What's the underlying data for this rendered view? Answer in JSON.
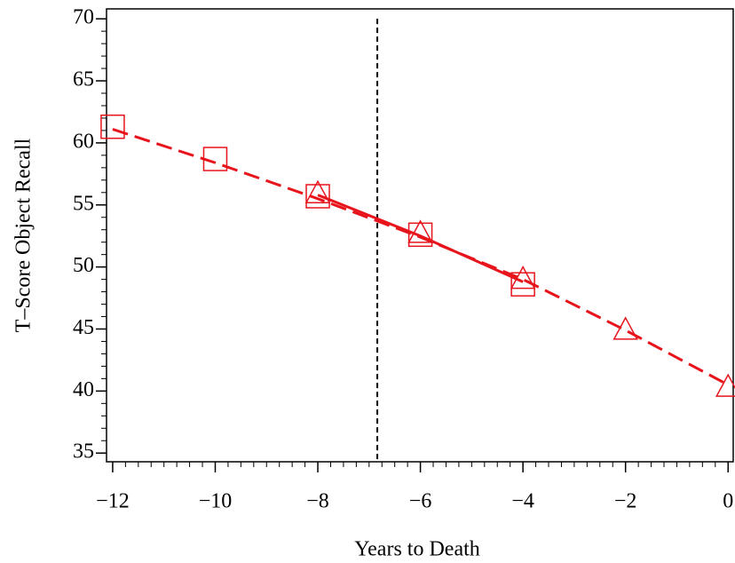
{
  "chart_data": {
    "type": "line",
    "xlabel": "Years to Death",
    "ylabel": "T–Score Object Recall",
    "xlim": [
      -12.12,
      0.1
    ],
    "ylim": [
      34.3,
      70.8
    ],
    "xticks": [
      {
        "value": -12,
        "label": "−12"
      },
      {
        "value": -10,
        "label": "−10"
      },
      {
        "value": -8,
        "label": "−8"
      },
      {
        "value": -6,
        "label": "−6"
      },
      {
        "value": -4,
        "label": "−4"
      },
      {
        "value": -2,
        "label": "−2"
      },
      0
    ],
    "yticks": [
      35,
      40,
      45,
      50,
      55,
      60,
      65,
      70
    ],
    "xminor": 0.25,
    "yminor": 1,
    "vline": -6.84,
    "series": [
      {
        "kind": "square",
        "color": "#e8141c",
        "x": [
          -12,
          -10,
          -8,
          -6,
          -4
        ],
        "values": [
          61.3,
          58.7,
          55.7,
          52.6,
          48.6
        ]
      },
      {
        "kind": "triangle",
        "color": "#e8141c",
        "x": [
          -8,
          -6,
          -4,
          -2,
          0
        ],
        "values": [
          55.9,
          52.7,
          49.0,
          44.9,
          40.3
        ]
      },
      {
        "kind": "dashed",
        "color": "#e8141c",
        "x": [
          -12,
          -10,
          -8,
          -6,
          -4,
          -2,
          0
        ],
        "values": [
          61.1,
          58.4,
          55.5,
          52.4,
          49.0,
          44.9,
          40.5
        ]
      },
      {
        "kind": "solid",
        "color": "#e8141c",
        "x": [
          -8,
          -6,
          -4
        ],
        "values": [
          55.8,
          52.5,
          48.8
        ]
      }
    ]
  }
}
